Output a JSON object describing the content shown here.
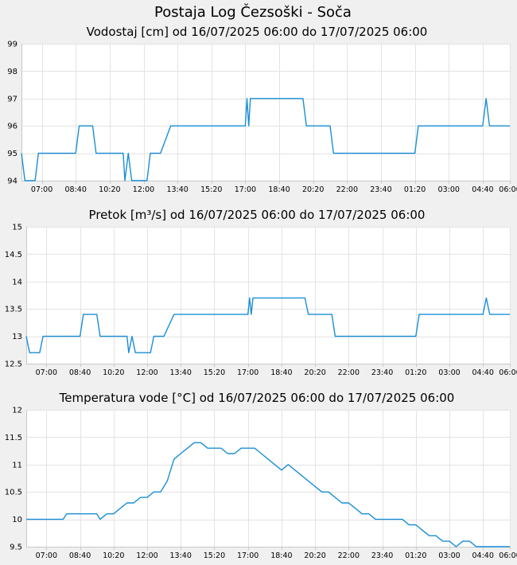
{
  "page": {
    "title": "Postaja Log Čezsoški - Soča"
  },
  "chart_data": [
    {
      "type": "line",
      "title": "Vodostaj [cm] od 16/07/2025 06:00 do 17/07/2025 06:00",
      "ylim": [
        94,
        99
      ],
      "yticks": [
        "94",
        "95",
        "96",
        "97",
        "98",
        "99"
      ],
      "xticks": [
        "07:00",
        "08:40",
        "10:20",
        "12:00",
        "13:40",
        "15:20",
        "17:00",
        "18:40",
        "20:20",
        "22:00",
        "23:40",
        "01:20",
        "03:00",
        "04:40",
        "06:00"
      ],
      "color": "#1a8ed6",
      "grid": true,
      "series": [
        {
          "x": [
            "06:00",
            "06:10",
            "06:30",
            "06:40",
            "06:50",
            "07:30",
            "08:00",
            "08:20",
            "08:40",
            "08:50",
            "09:30",
            "09:40",
            "10:00",
            "10:40",
            "11:00",
            "11:05",
            "11:15",
            "11:25",
            "11:35",
            "11:40",
            "12:10",
            "12:20",
            "12:30",
            "12:50",
            "13:20",
            "13:30",
            "14:30",
            "15:20",
            "16:20",
            "16:50",
            "17:00",
            "17:05",
            "17:10",
            "17:15",
            "17:20",
            "17:30",
            "18:10",
            "19:00",
            "19:50",
            "20:00",
            "20:40",
            "21:00",
            "21:10",
            "21:20",
            "22:00",
            "23:00",
            "23:40",
            "00:40",
            "01:20",
            "01:30",
            "02:00",
            "02:30",
            "03:00",
            "04:00",
            "04:30",
            "04:40",
            "04:50",
            "05:00",
            "06:00"
          ],
          "y": [
            95,
            94,
            94,
            94,
            95,
            95,
            95,
            95,
            95,
            96,
            96,
            95,
            95,
            95,
            95,
            94,
            95,
            94,
            94,
            94,
            94,
            95,
            95,
            95,
            96,
            96,
            96,
            96,
            96,
            96,
            96,
            97,
            96,
            97,
            97,
            97,
            97,
            97,
            97,
            96,
            96,
            96,
            96,
            95,
            95,
            95,
            95,
            95,
            95,
            96,
            96,
            96,
            96,
            96,
            96,
            96,
            97,
            96,
            96
          ]
        }
      ]
    },
    {
      "type": "line",
      "title": "Pretok [m³/s] od 16/07/2025 06:00 do 17/07/2025 06:00",
      "ylim": [
        12.5,
        15
      ],
      "yticks": [
        "12.5",
        "13",
        "13.5",
        "14",
        "14.5",
        "15"
      ],
      "xticks": [
        "07:00",
        "08:40",
        "10:20",
        "12:00",
        "13:40",
        "15:20",
        "17:00",
        "18:40",
        "20:20",
        "22:00",
        "23:40",
        "01:20",
        "03:00",
        "04:40",
        "06:00"
      ],
      "color": "#1a8ed6",
      "grid": true,
      "series": [
        {
          "x": [
            "06:00",
            "06:10",
            "06:30",
            "06:40",
            "06:50",
            "07:30",
            "08:00",
            "08:20",
            "08:40",
            "08:50",
            "09:30",
            "09:40",
            "10:00",
            "10:40",
            "11:00",
            "11:05",
            "11:15",
            "11:25",
            "11:35",
            "11:40",
            "12:10",
            "12:20",
            "12:30",
            "12:50",
            "13:20",
            "13:30",
            "14:30",
            "15:20",
            "16:20",
            "16:50",
            "17:00",
            "17:05",
            "17:10",
            "17:15",
            "17:20",
            "17:30",
            "18:10",
            "19:00",
            "19:50",
            "20:00",
            "20:40",
            "21:00",
            "21:10",
            "21:20",
            "22:00",
            "23:00",
            "23:40",
            "00:40",
            "01:20",
            "01:30",
            "02:00",
            "02:30",
            "03:00",
            "04:00",
            "04:30",
            "04:40",
            "04:50",
            "05:00",
            "06:00"
          ],
          "y": [
            13,
            12.7,
            12.7,
            12.7,
            13,
            13,
            13,
            13,
            13,
            13.4,
            13.4,
            13,
            13,
            13,
            13,
            12.7,
            13,
            12.7,
            12.7,
            12.7,
            12.7,
            13,
            13,
            13,
            13.4,
            13.4,
            13.4,
            13.4,
            13.4,
            13.4,
            13.4,
            13.7,
            13.4,
            13.7,
            13.7,
            13.7,
            13.7,
            13.7,
            13.7,
            13.4,
            13.4,
            13.4,
            13.4,
            13,
            13,
            13,
            13,
            13,
            13,
            13.4,
            13.4,
            13.4,
            13.4,
            13.4,
            13.4,
            13.4,
            13.7,
            13.4,
            13.4
          ]
        }
      ]
    },
    {
      "type": "line",
      "title": "Temperatura vode [°C] od 16/07/2025 06:00 do 17/07/2025 06:00",
      "ylim": [
        9.5,
        12
      ],
      "yticks": [
        "9.5",
        "10",
        "10.5",
        "11",
        "11.5",
        "12"
      ],
      "xticks": [
        "07:00",
        "08:40",
        "10:20",
        "12:00",
        "13:40",
        "15:20",
        "17:00",
        "18:40",
        "20:20",
        "22:00",
        "23:40",
        "01:20",
        "03:00",
        "04:40",
        "06:00"
      ],
      "color": "#1a8ed6",
      "grid": true,
      "series": [
        {
          "x": [
            "06:00",
            "07:50",
            "08:00",
            "09:30",
            "09:40",
            "10:00",
            "10:20",
            "10:40",
            "11:00",
            "11:20",
            "11:40",
            "12:00",
            "12:20",
            "12:40",
            "13:00",
            "13:20",
            "13:40",
            "14:00",
            "14:20",
            "14:40",
            "15:00",
            "15:20",
            "15:40",
            "16:00",
            "16:20",
            "16:40",
            "17:00",
            "17:20",
            "17:40",
            "18:00",
            "18:20",
            "18:40",
            "19:00",
            "19:20",
            "19:40",
            "20:00",
            "20:20",
            "20:40",
            "21:00",
            "21:20",
            "21:40",
            "22:00",
            "22:20",
            "22:40",
            "23:00",
            "23:20",
            "23:40",
            "00:00",
            "00:20",
            "00:40",
            "01:00",
            "01:20",
            "01:40",
            "02:00",
            "02:20",
            "02:40",
            "03:00",
            "03:20",
            "03:40",
            "04:00",
            "04:20",
            "04:40",
            "05:00",
            "06:00"
          ],
          "y": [
            10,
            10,
            10.1,
            10.1,
            10,
            10.1,
            10.1,
            10.2,
            10.3,
            10.3,
            10.4,
            10.4,
            10.5,
            10.5,
            10.7,
            11.1,
            11.2,
            11.3,
            11.4,
            11.4,
            11.3,
            11.3,
            11.3,
            11.2,
            11.2,
            11.3,
            11.3,
            11.3,
            11.2,
            11.1,
            11,
            10.9,
            11,
            10.9,
            10.8,
            10.7,
            10.6,
            10.5,
            10.5,
            10.4,
            10.3,
            10.3,
            10.2,
            10.1,
            10.1,
            10,
            10,
            10,
            10,
            10,
            9.9,
            9.9,
            9.8,
            9.7,
            9.7,
            9.6,
            9.6,
            9.5,
            9.6,
            9.6,
            9.5,
            9.5,
            9.5,
            9.5
          ]
        }
      ]
    }
  ]
}
